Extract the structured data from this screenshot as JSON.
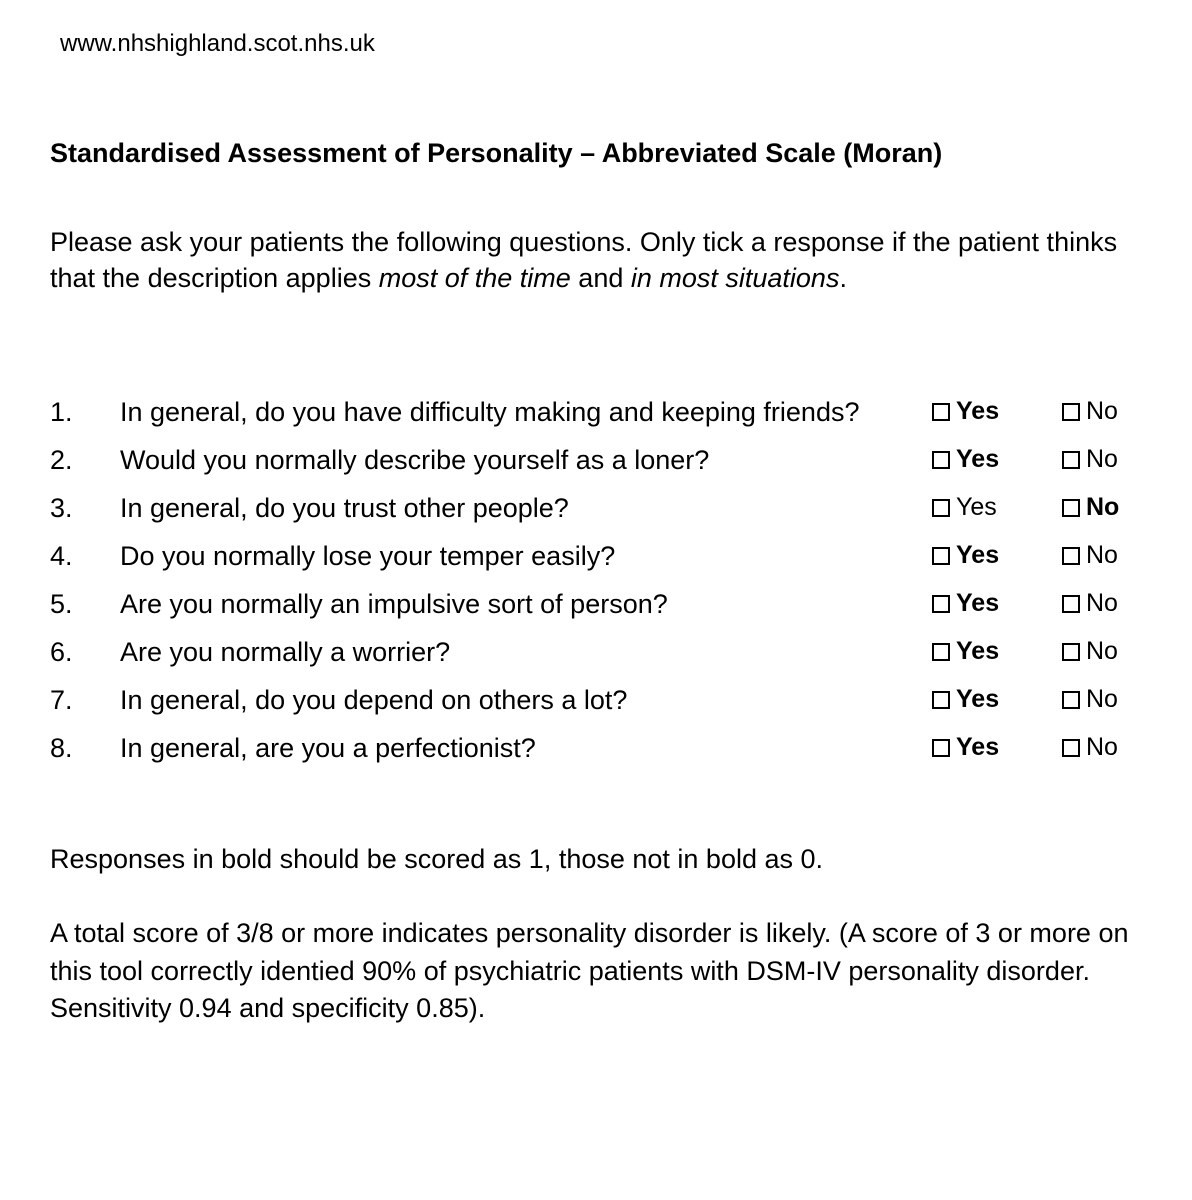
{
  "header": {
    "url": "www.nhshighland.scot.nhs.uk"
  },
  "title": "Standardised Assessment of Personality – Abbreviated Scale (Moran)",
  "instructions": {
    "prefix": "Please ask your patients the following questions. Only tick a response if the patient thinks that the description applies ",
    "italic1": "most of the time",
    "mid": " and ",
    "italic2": "in most situations",
    "suffix": "."
  },
  "yes_label": "Yes",
  "no_label": "No",
  "questions": [
    {
      "num": "1.",
      "text": "In general, do you have difficulty making and keeping friends?",
      "bold": "yes"
    },
    {
      "num": "2.",
      "text": "Would you normally describe yourself as a loner?",
      "bold": "yes"
    },
    {
      "num": "3.",
      "text": "In general, do you trust other people?",
      "bold": "no"
    },
    {
      "num": "4.",
      "text": "Do you normally lose your temper easily?",
      "bold": "yes"
    },
    {
      "num": "5.",
      "text": "Are you normally an impulsive sort of person?",
      "bold": "yes"
    },
    {
      "num": "6.",
      "text": "Are you normally a worrier?",
      "bold": "yes"
    },
    {
      "num": "7.",
      "text": "In general, do you depend on others a lot?",
      "bold": "yes"
    },
    {
      "num": "8.",
      "text": "In general, are you a perfectionist?",
      "bold": "yes"
    }
  ],
  "scoring_note": "Responses in bold should be scored as 1, those not in bold as 0.",
  "interpretation": "A total score of 3/8 or more indicates personality disorder is likely. (A score of 3 or more on this tool correctly identied 90% of psychiatric patients with DSM-IV personality disorder. Sensitivity 0.94 and specificity 0.85)."
}
